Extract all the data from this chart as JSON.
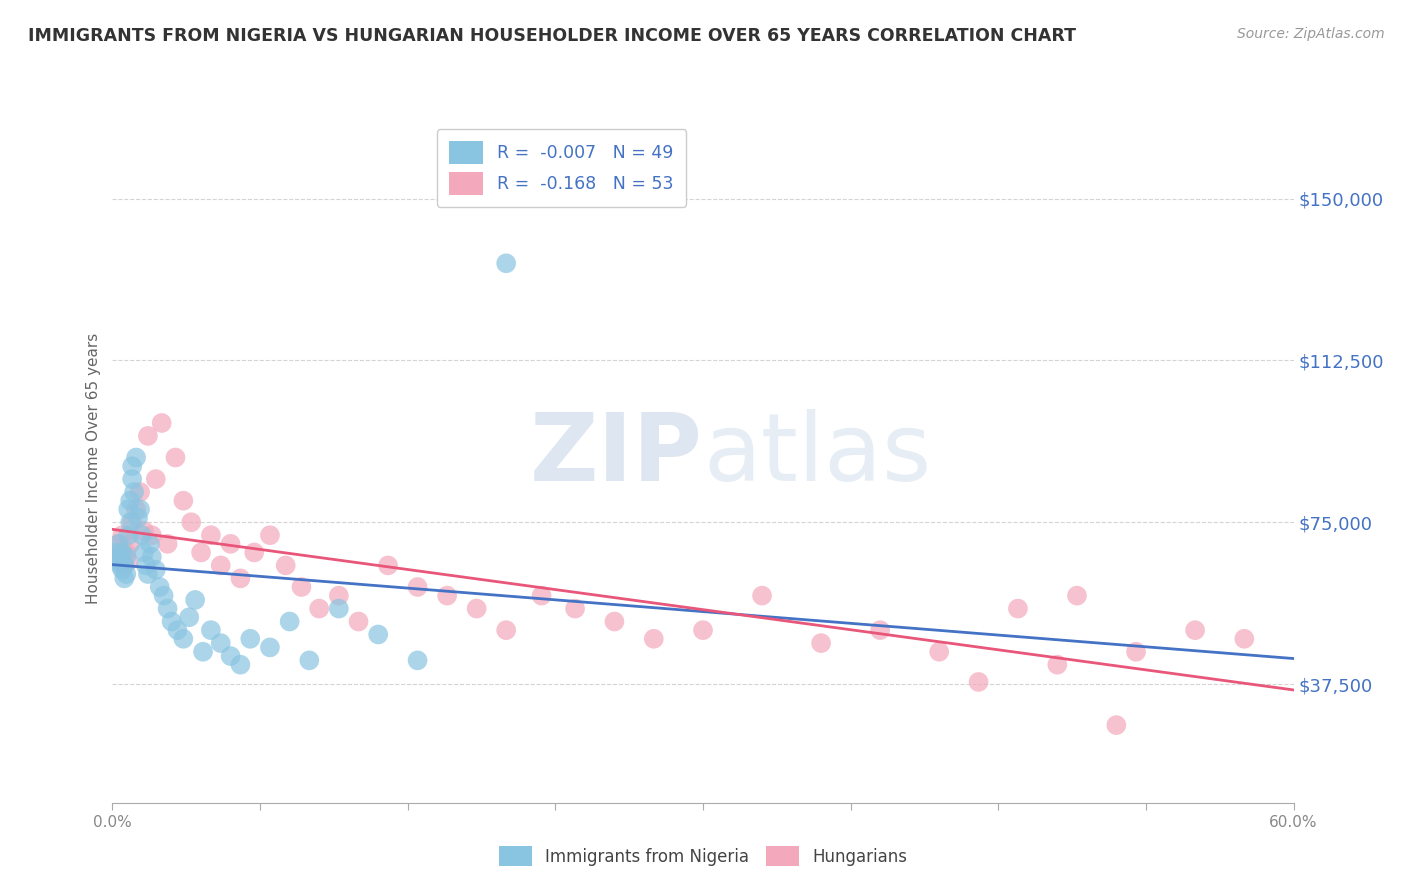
{
  "title": "IMMIGRANTS FROM NIGERIA VS HUNGARIAN HOUSEHOLDER INCOME OVER 65 YEARS CORRELATION CHART",
  "source": "Source: ZipAtlas.com",
  "ylabel": "Householder Income Over 65 years",
  "xmin": 0.0,
  "xmax": 0.6,
  "ymin": 10000,
  "ymax": 165000,
  "yticks": [
    37500,
    75000,
    112500,
    150000
  ],
  "ytick_labels": [
    "$37,500",
    "$75,000",
    "$112,500",
    "$150,000"
  ],
  "xticks": [
    0.0,
    0.075,
    0.15,
    0.225,
    0.3,
    0.375,
    0.45,
    0.525,
    0.6
  ],
  "xtick_labels": [
    "0.0%",
    "",
    "",
    "",
    "",
    "",
    "",
    "",
    "60.0%"
  ],
  "legend_line1": "R =  -0.007   N = 49",
  "legend_line2": "R =  -0.168   N = 53",
  "color_blue": "#89c4e1",
  "color_pink": "#f4a8bb",
  "line_blue": "#4472c4",
  "line_pink": "#e8567a",
  "grid_color": "#d0d0d0",
  "title_color": "#333333",
  "axis_label_color": "#666666",
  "tick_label_color": "#4472c4",
  "watermark": "ZIPatlas",
  "nigeria_x": [
    0.002,
    0.003,
    0.003,
    0.004,
    0.004,
    0.005,
    0.005,
    0.006,
    0.006,
    0.007,
    0.007,
    0.008,
    0.008,
    0.009,
    0.009,
    0.01,
    0.01,
    0.011,
    0.012,
    0.013,
    0.014,
    0.015,
    0.016,
    0.017,
    0.018,
    0.019,
    0.02,
    0.022,
    0.024,
    0.026,
    0.028,
    0.03,
    0.033,
    0.036,
    0.039,
    0.042,
    0.046,
    0.05,
    0.055,
    0.06,
    0.065,
    0.07,
    0.08,
    0.09,
    0.1,
    0.115,
    0.135,
    0.155,
    0.2
  ],
  "nigeria_y": [
    68000,
    66000,
    70000,
    65000,
    67000,
    64000,
    68000,
    62000,
    65000,
    63000,
    67000,
    72000,
    78000,
    75000,
    80000,
    85000,
    88000,
    82000,
    90000,
    76000,
    78000,
    72000,
    68000,
    65000,
    63000,
    70000,
    67000,
    64000,
    60000,
    58000,
    55000,
    52000,
    50000,
    48000,
    53000,
    57000,
    45000,
    50000,
    47000,
    44000,
    42000,
    48000,
    46000,
    52000,
    43000,
    55000,
    49000,
    43000,
    135000
  ],
  "hungarian_x": [
    0.003,
    0.004,
    0.005,
    0.006,
    0.007,
    0.008,
    0.009,
    0.01,
    0.012,
    0.014,
    0.016,
    0.018,
    0.02,
    0.022,
    0.025,
    0.028,
    0.032,
    0.036,
    0.04,
    0.045,
    0.05,
    0.055,
    0.06,
    0.065,
    0.072,
    0.08,
    0.088,
    0.096,
    0.105,
    0.115,
    0.125,
    0.14,
    0.155,
    0.17,
    0.185,
    0.2,
    0.218,
    0.235,
    0.255,
    0.275,
    0.3,
    0.33,
    0.36,
    0.39,
    0.42,
    0.46,
    0.49,
    0.52,
    0.55,
    0.575,
    0.44,
    0.48,
    0.51
  ],
  "hungarian_y": [
    70000,
    68000,
    72000,
    65000,
    68000,
    66000,
    70000,
    75000,
    78000,
    82000,
    73000,
    95000,
    72000,
    85000,
    98000,
    70000,
    90000,
    80000,
    75000,
    68000,
    72000,
    65000,
    70000,
    62000,
    68000,
    72000,
    65000,
    60000,
    55000,
    58000,
    52000,
    65000,
    60000,
    58000,
    55000,
    50000,
    58000,
    55000,
    52000,
    48000,
    50000,
    58000,
    47000,
    50000,
    45000,
    55000,
    58000,
    45000,
    50000,
    48000,
    38000,
    42000,
    28000
  ]
}
